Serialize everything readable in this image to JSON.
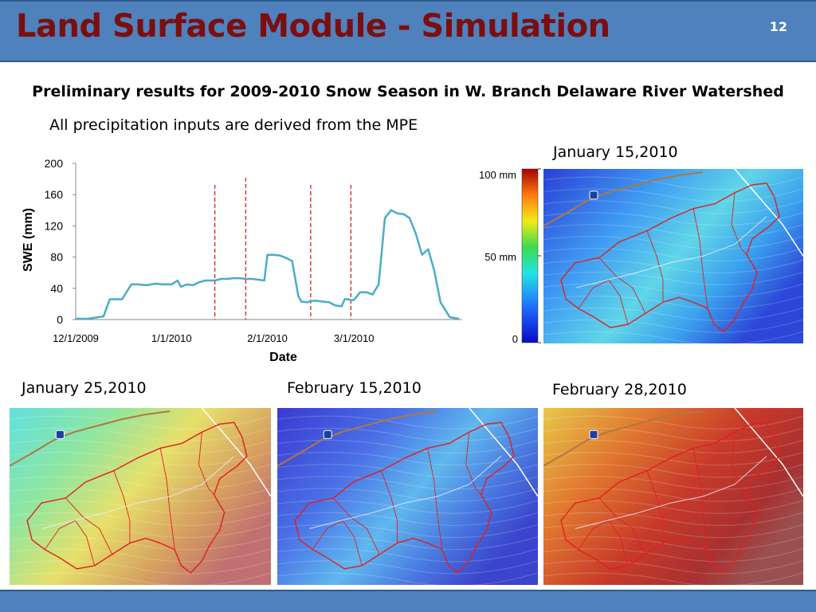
{
  "header": {
    "title": "Land Surface Module - Simulation",
    "slide_number": "12"
  },
  "subtitle": "Preliminary results for 2009-2010 Snow Season in W. Branch Delaware River Watershed",
  "note": "All precipitation inputs are derived from the MPE",
  "colors": {
    "header_bg": "#4f81bd",
    "title": "#7b0f0f",
    "swe_line": "#4bacc6",
    "date_markers": "#e31a1c"
  },
  "colorbar": {
    "top_label": "100 mm",
    "mid_label": "50 mm",
    "bottom_label": "0"
  },
  "maps": [
    {
      "label": "January 15,2010",
      "snow_level": "medium"
    },
    {
      "label": "January 25,2010",
      "snow_level": "medium-high"
    },
    {
      "label": "February 15,2010",
      "snow_level": "low"
    },
    {
      "label": "February 28,2010",
      "snow_level": "high"
    }
  ],
  "chart_data": {
    "type": "line",
    "title": "",
    "xlabel": "Date",
    "ylabel": "SWE (mm)",
    "ylim": [
      0,
      200
    ],
    "yticks": [
      0,
      40,
      80,
      120,
      160,
      200
    ],
    "xlim": [
      "2009-12-01",
      "2010-04-05"
    ],
    "xticks": [
      "12/1/2009",
      "1/1/2010",
      "2/1/2010",
      "3/1/2010"
    ],
    "grid": false,
    "legend": "none",
    "series": [
      {
        "name": "",
        "x": [
          "2009-12-01",
          "2009-12-05",
          "2009-12-08",
          "2009-12-10",
          "2009-12-12",
          "2009-12-13",
          "2009-12-16",
          "2009-12-19",
          "2009-12-21",
          "2009-12-24",
          "2009-12-27",
          "2009-12-29",
          "2010-01-01",
          "2010-01-03",
          "2010-01-04",
          "2010-01-06",
          "2010-01-08",
          "2010-01-10",
          "2010-01-12",
          "2010-01-15",
          "2010-01-17",
          "2010-01-19",
          "2010-01-21",
          "2010-01-23",
          "2010-01-25",
          "2010-01-27",
          "2010-01-29",
          "2010-01-31",
          "2010-02-01",
          "2010-02-02",
          "2010-02-03",
          "2010-02-05",
          "2010-02-07",
          "2010-02-09",
          "2010-02-11",
          "2010-02-12",
          "2010-02-14",
          "2010-02-15",
          "2010-02-17",
          "2010-02-19",
          "2010-02-21",
          "2010-02-23",
          "2010-02-25",
          "2010-02-26",
          "2010-02-27",
          "2010-02-28",
          "2010-03-01",
          "2010-03-02",
          "2010-03-03",
          "2010-03-05",
          "2010-03-07",
          "2010-03-09",
          "2010-03-11",
          "2010-03-13",
          "2010-03-15",
          "2010-03-17",
          "2010-03-19",
          "2010-03-21",
          "2010-03-23",
          "2010-03-25",
          "2010-03-27",
          "2010-03-29",
          "2010-04-01",
          "2010-04-04"
        ],
        "values": [
          1,
          1,
          3,
          4,
          26,
          26,
          26,
          45,
          45,
          44,
          46,
          45,
          45,
          50,
          42,
          45,
          44,
          48,
          50,
          50,
          52,
          52,
          53,
          53,
          52,
          52,
          51,
          50,
          83,
          83,
          83,
          82,
          79,
          75,
          30,
          23,
          22,
          24,
          24,
          23,
          22,
          18,
          17,
          26,
          26,
          25,
          25,
          30,
          35,
          35,
          32,
          45,
          130,
          140,
          136,
          135,
          130,
          110,
          83,
          90,
          62,
          22,
          3,
          1
        ]
      }
    ],
    "markers": [
      "2010-01-15",
      "2010-01-25",
      "2010-02-15",
      "2010-02-28"
    ]
  }
}
